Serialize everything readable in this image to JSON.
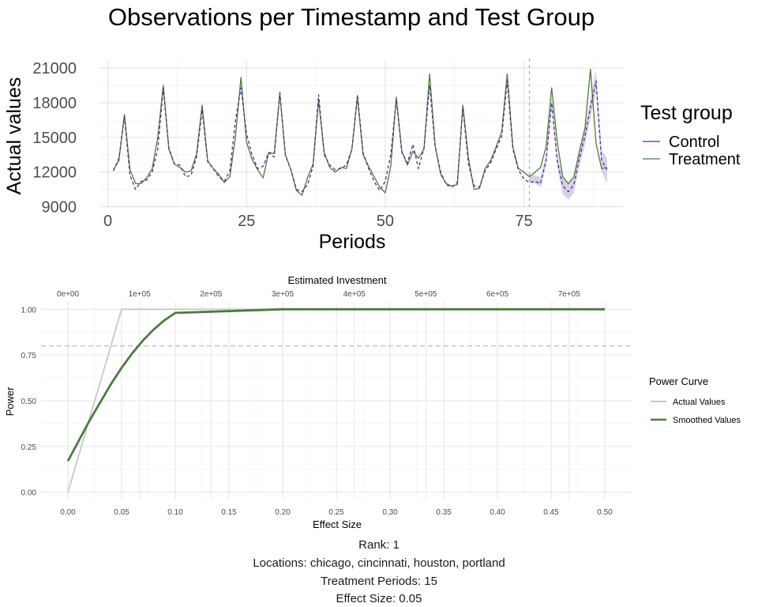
{
  "chart_data": [
    {
      "type": "line",
      "title": "Observations per Timestamp and Test Group",
      "xlabel": "Periods",
      "ylabel": "Actual values",
      "xlim": [
        -1.5,
        93
      ],
      "ylim": [
        8900,
        21700
      ],
      "x_ticks": [
        0,
        25,
        50,
        75
      ],
      "y_ticks": [
        9000,
        12000,
        15000,
        18000,
        21000
      ],
      "y_tick_labels": [
        "9000",
        "12000",
        "15000",
        "18000",
        "21000"
      ],
      "grid": true,
      "legend_title": "Test group",
      "legend_position": "right",
      "treatment_start": 76,
      "x": [
        1,
        2,
        3,
        4,
        5,
        6,
        7,
        8,
        9,
        10,
        11,
        12,
        13,
        14,
        15,
        16,
        17,
        18,
        19,
        20,
        21,
        22,
        23,
        24,
        25,
        26,
        27,
        28,
        29,
        30,
        31,
        32,
        33,
        34,
        35,
        36,
        37,
        38,
        39,
        40,
        41,
        42,
        43,
        44,
        45,
        46,
        47,
        48,
        49,
        50,
        51,
        52,
        53,
        54,
        55,
        56,
        57,
        58,
        59,
        60,
        61,
        62,
        63,
        64,
        65,
        66,
        67,
        68,
        69,
        70,
        71,
        72,
        73,
        74,
        75,
        76,
        77,
        78,
        79,
        80,
        81,
        82,
        83,
        84,
        85,
        86,
        87,
        88,
        89,
        90
      ],
      "series": [
        {
          "name": "Control",
          "color": "#5b2a86",
          "dash": "dashed",
          "values": [
            12100,
            13200,
            16800,
            11700,
            10500,
            11200,
            11300,
            12000,
            14000,
            19300,
            14100,
            12700,
            12600,
            11600,
            11700,
            13300,
            17400,
            12900,
            12300,
            11600,
            11200,
            12100,
            16400,
            19300,
            15300,
            13500,
            12300,
            12500,
            13700,
            13300,
            18900,
            13500,
            12200,
            10500,
            10300,
            10900,
            12500,
            18700,
            13500,
            12600,
            12200,
            12300,
            12600,
            14000,
            18700,
            13700,
            12300,
            11200,
            10400,
            11200,
            13500,
            18300,
            13700,
            12800,
            14400,
            12300,
            14100,
            19500,
            14200,
            12000,
            10900,
            10700,
            11100,
            17600,
            12700,
            10800,
            10700,
            12100,
            12800,
            14000,
            15100,
            19900,
            14000,
            12200,
            11400,
            11100,
            11200,
            11000,
            13000,
            18000,
            13000,
            10800,
            10300,
            10900,
            13200,
            15100,
            17600,
            19900,
            13000,
            12200
          ],
          "ribbon_lower": [
            null,
            null,
            null,
            null,
            null,
            null,
            null,
            null,
            null,
            null,
            null,
            null,
            null,
            null,
            null,
            null,
            null,
            null,
            null,
            null,
            null,
            null,
            null,
            null,
            null,
            null,
            null,
            null,
            null,
            null,
            null,
            null,
            null,
            null,
            null,
            null,
            null,
            null,
            null,
            null,
            null,
            null,
            null,
            null,
            null,
            null,
            null,
            null,
            null,
            null,
            null,
            null,
            null,
            null,
            null,
            null,
            null,
            null,
            null,
            null,
            null,
            null,
            null,
            null,
            null,
            null,
            null,
            null,
            null,
            null,
            null,
            null,
            null,
            null,
            null,
            11100,
            11000,
            10700,
            12600,
            17500,
            12400,
            10100,
            9600,
            10200,
            12500,
            14300,
            16700,
            18900,
            12000,
            11100
          ],
          "ribbon_upper": [
            null,
            null,
            null,
            null,
            null,
            null,
            null,
            null,
            null,
            null,
            null,
            null,
            null,
            null,
            null,
            null,
            null,
            null,
            null,
            null,
            null,
            null,
            null,
            null,
            null,
            null,
            null,
            null,
            null,
            null,
            null,
            null,
            null,
            null,
            null,
            null,
            null,
            null,
            null,
            null,
            null,
            null,
            null,
            null,
            null,
            null,
            null,
            null,
            null,
            null,
            null,
            null,
            null,
            null,
            null,
            null,
            null,
            null,
            null,
            null,
            null,
            null,
            null,
            null,
            null,
            null,
            null,
            null,
            null,
            null,
            null,
            null,
            null,
            null,
            null,
            11800,
            11700,
            11600,
            13600,
            18500,
            13700,
            11500,
            11000,
            11600,
            13900,
            15900,
            18400,
            20800,
            13900,
            13200
          ]
        },
        {
          "name": "Treatment",
          "color": "#4a7c3f",
          "dash": "solid",
          "values": [
            12200,
            13000,
            17000,
            12200,
            11000,
            11000,
            11500,
            12300,
            15000,
            19500,
            14000,
            12700,
            12400,
            12000,
            12100,
            13600,
            17800,
            13000,
            12300,
            11800,
            11100,
            11600,
            15000,
            20200,
            14600,
            13100,
            12200,
            11500,
            13700,
            13600,
            18800,
            13500,
            12200,
            10400,
            10000,
            11500,
            12700,
            18200,
            13700,
            12400,
            12000,
            12400,
            12300,
            14000,
            18500,
            13500,
            12500,
            11600,
            10700,
            10200,
            12500,
            18500,
            13800,
            12600,
            13800,
            13200,
            14000,
            20500,
            14300,
            11800,
            11000,
            10800,
            10900,
            17800,
            13200,
            10500,
            10600,
            12300,
            13000,
            14200,
            15500,
            20500,
            14200,
            12300,
            12000,
            11600,
            12000,
            12400,
            14200,
            19300,
            14600,
            11600,
            11000,
            11600,
            13800,
            15800,
            20900,
            14500,
            12300,
            12400
          ]
        }
      ]
    },
    {
      "type": "line",
      "xlabel": "Effect Size",
      "ylabel": "Power",
      "secondary_xlabel": "Estimated Investment",
      "xlim": [
        -0.025,
        0.525
      ],
      "ylim": [
        -0.04,
        1.04
      ],
      "x_ticks": [
        0,
        0.05,
        0.1,
        0.15,
        0.2,
        0.25,
        0.3,
        0.35,
        0.4,
        0.45,
        0.5
      ],
      "x_tick_labels": [
        "0.00",
        "0.05",
        "0.10",
        "0.15",
        "0.20",
        "0.25",
        "0.30",
        "0.35",
        "0.40",
        "0.45",
        "0.50"
      ],
      "y_ticks": [
        0,
        0.25,
        0.5,
        0.75,
        1
      ],
      "y_tick_labels": [
        "0.00",
        "0.25",
        "0.50",
        "0.75",
        "1.00"
      ],
      "secondary_x_ticks": [
        0,
        100000,
        200000,
        300000,
        400000,
        500000,
        600000,
        700000
      ],
      "secondary_x_tick_labels": [
        "0e+00",
        "1e+05",
        "2e+05",
        "3e+05",
        "4e+05",
        "5e+05",
        "6e+05",
        "7e+05"
      ],
      "investment_per_effect": 1500000,
      "power_threshold": 0.8,
      "grid": true,
      "legend_title": "Power Curve",
      "legend_position": "right",
      "series": [
        {
          "name": "Actual Values",
          "color": "#c8c8c8",
          "x": [
            0,
            0.05,
            0.1,
            0.15,
            0.2,
            0.25,
            0.3,
            0.35,
            0.4,
            0.45,
            0.5
          ],
          "values": [
            0,
            1,
            1,
            1,
            1,
            1,
            1,
            1,
            1,
            1,
            1
          ]
        },
        {
          "name": "Smoothed Values",
          "color": "#4a7c3f",
          "x": [
            0,
            0.01,
            0.02,
            0.03,
            0.04,
            0.05,
            0.06,
            0.07,
            0.08,
            0.09,
            0.1,
            0.15,
            0.2,
            0.25,
            0.3,
            0.35,
            0.4,
            0.45,
            0.5
          ],
          "values": [
            0.17,
            0.28,
            0.39,
            0.49,
            0.59,
            0.68,
            0.76,
            0.83,
            0.89,
            0.94,
            0.98,
            0.99,
            1,
            1,
            1,
            1,
            1,
            1,
            1
          ]
        }
      ]
    }
  ],
  "captions": {
    "rank": "Rank: 1",
    "locations": "Locations: chicago, cincinnati, houston, portland",
    "treatment_periods": "Treatment Periods: 15",
    "effect_size": "Effect Size:  0.05"
  }
}
